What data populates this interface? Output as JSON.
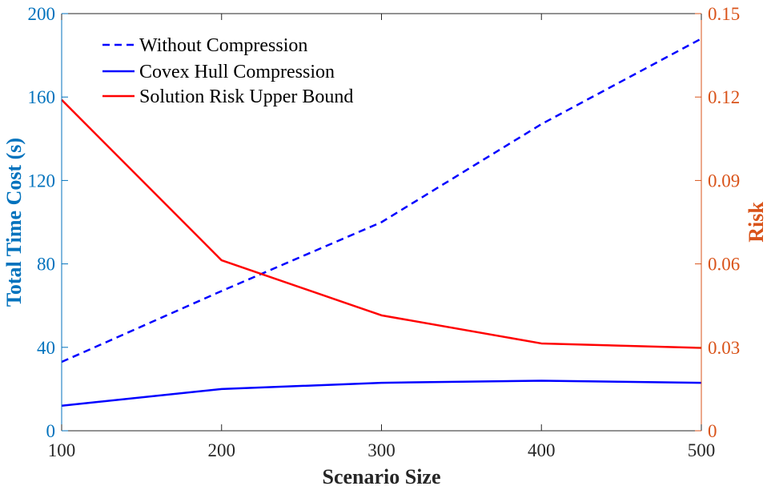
{
  "chart_data": {
    "type": "line",
    "xlabel": "Scenario Size",
    "ylabel_left": "Total Time Cost (s)",
    "ylabel_right": "Risk",
    "x": [
      100,
      200,
      300,
      400,
      500
    ],
    "xlim": [
      100,
      500
    ],
    "ylim_left": [
      0,
      200
    ],
    "ylim_right": [
      0,
      0.15
    ],
    "xticks": [
      "100",
      "200",
      "300",
      "400",
      "500"
    ],
    "yticks_left": [
      "0",
      "40",
      "80",
      "120",
      "160",
      "200"
    ],
    "yticks_right": [
      "0",
      "0.03",
      "0.06",
      "0.09",
      "0.12",
      "0.15"
    ],
    "axis_colors": {
      "left": "#0072BD",
      "right": "#D95319",
      "bottom": "#262626"
    },
    "legend_position": "top-left",
    "grid": false,
    "series": [
      {
        "name": "Without Compression",
        "axis": "left",
        "style": "dashed",
        "color": "#0000FF",
        "values": [
          33,
          67,
          100,
          147,
          188
        ]
      },
      {
        "name": "Covex Hull Compression",
        "axis": "left",
        "style": "solid",
        "color": "#0000FF",
        "values": [
          12,
          20,
          23,
          24,
          23
        ]
      },
      {
        "name": "Solution Risk Upper Bound",
        "axis": "right",
        "style": "solid",
        "color": "#FF0000",
        "values": [
          0.119,
          0.0613,
          0.0415,
          0.0314,
          0.0298
        ]
      }
    ]
  }
}
